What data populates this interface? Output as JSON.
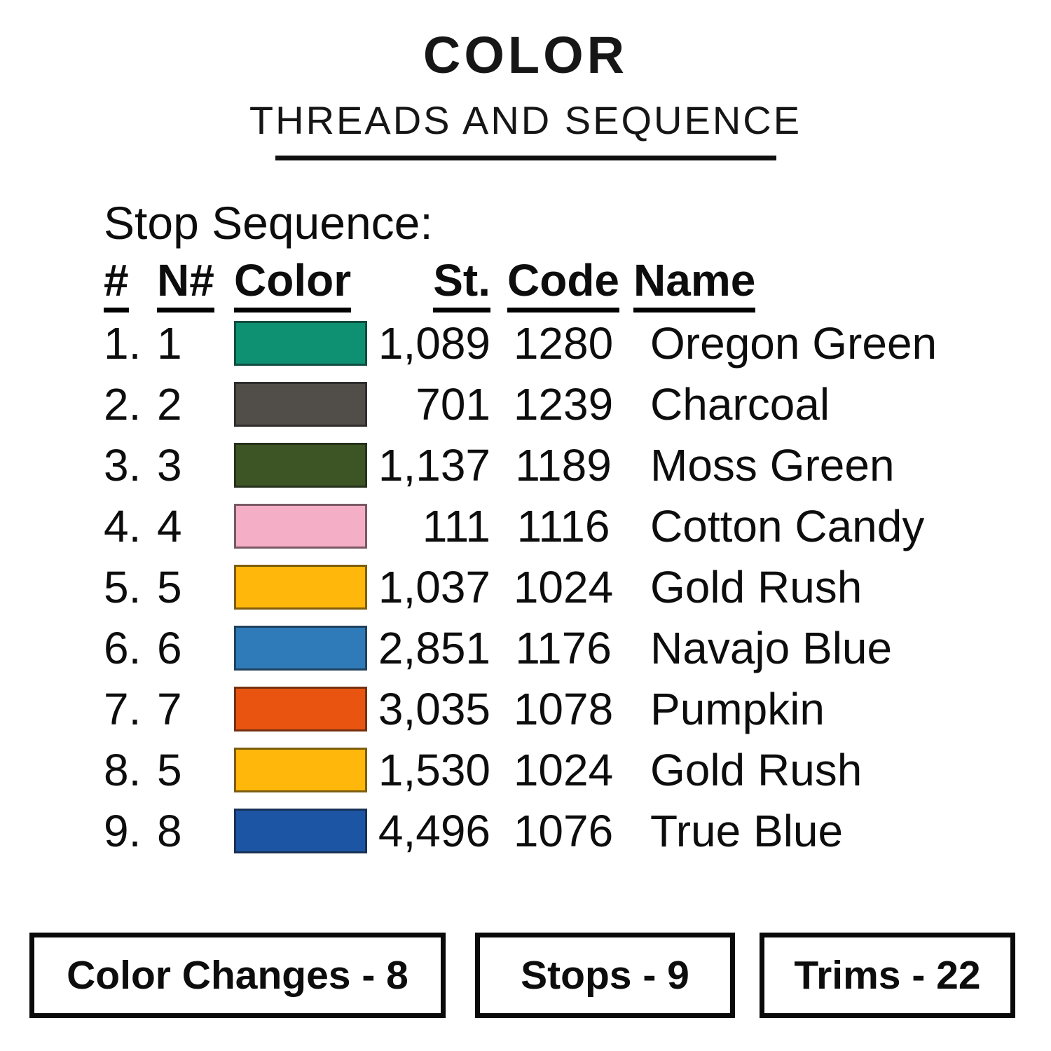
{
  "title": {
    "line1": "COLOR",
    "line2": "THREADS AND SEQUENCE"
  },
  "section_heading": "Stop Sequence:",
  "table": {
    "headers": {
      "seq": "#",
      "needle": "N#",
      "color": "Color",
      "stitches": "St.",
      "code": "Code",
      "name": "Name"
    },
    "rows": [
      {
        "seq": "1.",
        "needle": "1",
        "swatch": "#0e9173",
        "stitches": "1,089",
        "code": "1280",
        "name": "Oregon Green"
      },
      {
        "seq": "2.",
        "needle": "2",
        "swatch": "#514e49",
        "stitches": "701",
        "code": "1239",
        "name": "Charcoal"
      },
      {
        "seq": "3.",
        "needle": "3",
        "swatch": "#3d5524",
        "stitches": "1,137",
        "code": "1189",
        "name": "Moss Green"
      },
      {
        "seq": "4.",
        "needle": "4",
        "swatch": "#f4aec5",
        "stitches": "111",
        "code": "1116",
        "name": "Cotton Candy"
      },
      {
        "seq": "5.",
        "needle": "5",
        "swatch": "#feb70a",
        "stitches": "1,037",
        "code": "1024",
        "name": "Gold Rush"
      },
      {
        "seq": "6.",
        "needle": "6",
        "swatch": "#2f7bb9",
        "stitches": "2,851",
        "code": "1176",
        "name": "Navajo Blue"
      },
      {
        "seq": "7.",
        "needle": "7",
        "swatch": "#e95410",
        "stitches": "3,035",
        "code": "1078",
        "name": "Pumpkin"
      },
      {
        "seq": "8.",
        "needle": "5",
        "swatch": "#feb70a",
        "stitches": "1,530",
        "code": "1024",
        "name": "Gold Rush"
      },
      {
        "seq": "9.",
        "needle": "8",
        "swatch": "#1d55a5",
        "stitches": "4,496",
        "code": "1076",
        "name": "True Blue"
      }
    ]
  },
  "footer": {
    "boxes": [
      {
        "label": "Color Changes - 8"
      },
      {
        "label": "Stops - 9"
      },
      {
        "label": "Trims - 22"
      }
    ]
  }
}
